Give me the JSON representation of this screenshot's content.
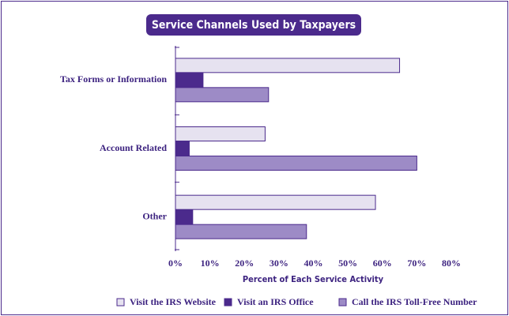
{
  "chart_data": {
    "type": "barh",
    "title": "Service Channels Used by Taxpayers",
    "xlabel": "Percent of Each Service Activity",
    "categories": [
      "Tax Forms or Information",
      "Account Related",
      "Other"
    ],
    "series": [
      {
        "name": "Visit the IRS Website",
        "color": "#e6e2f0",
        "values": [
          65,
          26,
          58
        ]
      },
      {
        "name": "Visit an IRS Office",
        "color": "#4b2a8c",
        "values": [
          8,
          4,
          5
        ]
      },
      {
        "name": "Call the IRS Toll-Free Number",
        "color": "#9d8bc6",
        "values": [
          27,
          70,
          38
        ]
      }
    ],
    "xlim": [
      0,
      80
    ],
    "xticks": [
      {
        "value": 0,
        "label": "0%"
      },
      {
        "value": 10,
        "label": "10%"
      },
      {
        "value": 20,
        "label": "20%"
      },
      {
        "value": 30,
        "label": "30%"
      },
      {
        "value": 40,
        "label": "40%"
      },
      {
        "value": 50,
        "label": "50%"
      },
      {
        "value": 60,
        "label": "60%"
      },
      {
        "value": 70,
        "label": "70%"
      },
      {
        "value": 80,
        "label": "80%"
      }
    ],
    "legend": "bottom"
  }
}
